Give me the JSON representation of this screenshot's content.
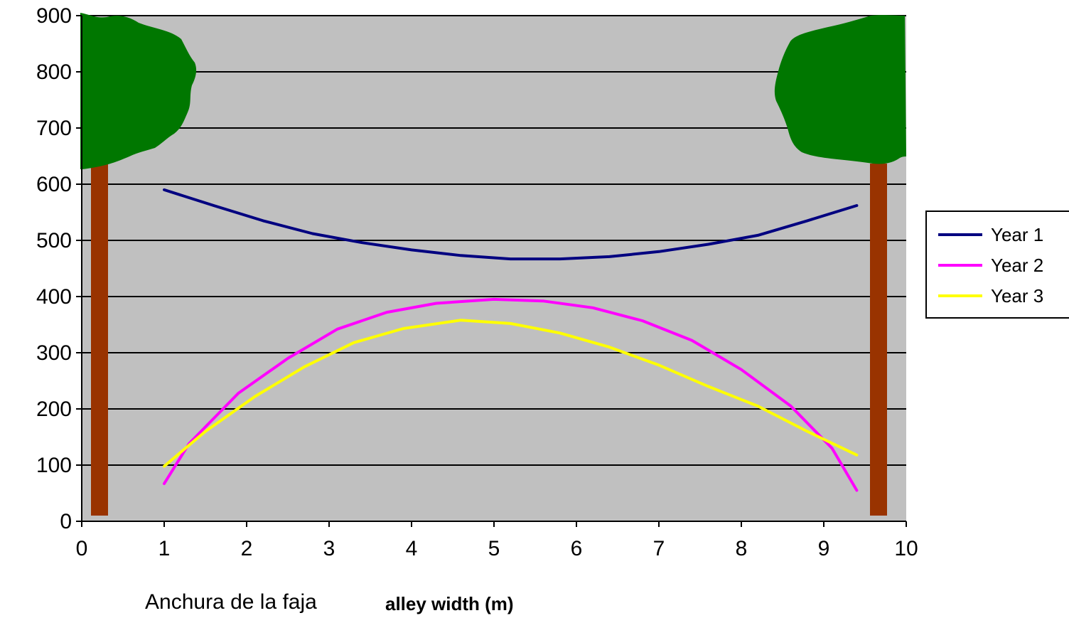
{
  "chart_data": {
    "type": "line",
    "xlim": [
      0,
      10
    ],
    "ylim": [
      0,
      900
    ],
    "x_ticks": [
      "0",
      "1",
      "2",
      "3",
      "4",
      "5",
      "6",
      "7",
      "8",
      "9",
      "10"
    ],
    "y_ticks": [
      "0",
      "100",
      "200",
      "300",
      "400",
      "500",
      "600",
      "700",
      "800",
      "900"
    ],
    "xlabel": "Anchura de la faja",
    "xlabel_secondary": "alley width (m)",
    "ylabel": "",
    "grid": "horizontal",
    "plot_background": "#c0c0c0",
    "legend_position": "right",
    "series": [
      {
        "name": "Year 1",
        "color": "#000080",
        "x": [
          1.0,
          1.6,
          2.2,
          2.8,
          3.4,
          4.0,
          4.6,
          5.2,
          5.8,
          6.4,
          7.0,
          7.6,
          8.2,
          8.8,
          9.4
        ],
        "y": [
          590,
          562,
          535,
          512,
          496,
          483,
          473,
          467,
          467,
          471,
          480,
          493,
          509,
          535,
          562
        ]
      },
      {
        "name": "Year 2",
        "color": "#ff00ff",
        "x": [
          1.0,
          1.3,
          1.9,
          2.5,
          3.1,
          3.7,
          4.3,
          5.0,
          5.6,
          6.2,
          6.8,
          7.4,
          8.0,
          8.6,
          9.1,
          9.4
        ],
        "y": [
          67,
          138,
          228,
          290,
          342,
          372,
          388,
          395,
          392,
          380,
          357,
          322,
          270,
          205,
          130,
          55
        ]
      },
      {
        "name": "Year 3",
        "color": "#ffff00",
        "x": [
          1.0,
          1.5,
          2.1,
          2.7,
          3.3,
          3.9,
          4.6,
          5.2,
          5.8,
          6.4,
          7.0,
          7.6,
          8.2,
          8.8,
          9.4
        ],
        "y": [
          98,
          160,
          222,
          275,
          318,
          343,
          358,
          352,
          335,
          310,
          278,
          240,
          205,
          160,
          118
        ]
      }
    ]
  },
  "decorations": {
    "tree_icon_name": "tree-icon",
    "trunk_color": "#993300",
    "canopy_color": "#007700"
  }
}
